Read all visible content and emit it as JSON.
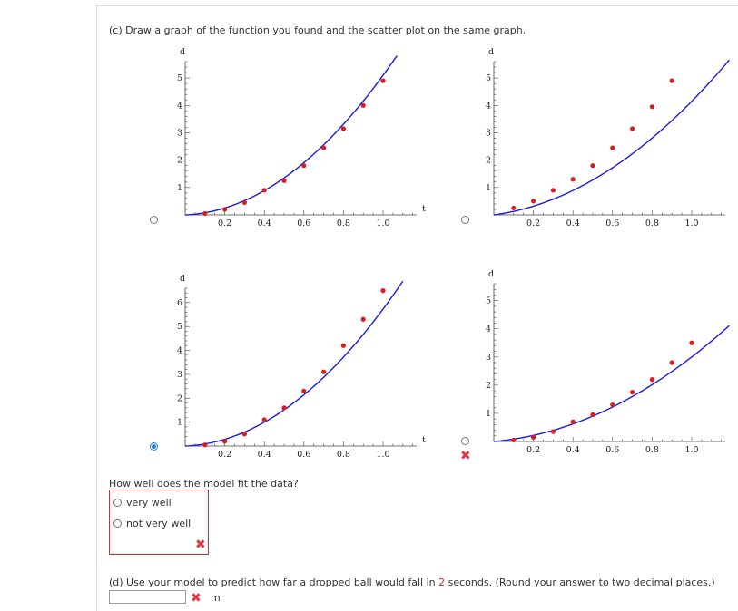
{
  "part_c": {
    "text": "(c) Draw a graph of the function you found and the scatter plot on the same graph."
  },
  "graphs": [
    {
      "id": "tl",
      "selected": false,
      "y_label": "d",
      "x_label": "t",
      "y_ticks": [
        "1",
        "2",
        "3",
        "4",
        "5"
      ],
      "x_ticks": [
        "0.2",
        "0.4",
        "0.6",
        "0.8",
        "1.0"
      ],
      "ymax": 5.6,
      "xmax": 1.17,
      "curve": {
        "a": 4.8,
        "b": 0.3
      },
      "points": [
        [
          0.1,
          0.05
        ],
        [
          0.2,
          0.2
        ],
        [
          0.3,
          0.45
        ],
        [
          0.4,
          0.9
        ],
        [
          0.5,
          1.25
        ],
        [
          0.6,
          1.8
        ],
        [
          0.7,
          2.45
        ],
        [
          0.8,
          3.15
        ],
        [
          0.9,
          4.0
        ],
        [
          1.0,
          4.9
        ]
      ]
    },
    {
      "id": "tr",
      "selected": false,
      "y_label": "d",
      "x_label": "",
      "y_ticks": [
        "1",
        "2",
        "3",
        "4",
        "5"
      ],
      "x_ticks": [
        "0.2",
        "0.4",
        "0.6",
        "0.8",
        "1.0"
      ],
      "ymax": 5.6,
      "xmax": 1.17,
      "curve": {
        "a": 3.2,
        "b": 0.95
      },
      "points": [
        [
          0.1,
          0.25
        ],
        [
          0.2,
          0.5
        ],
        [
          0.3,
          0.9
        ],
        [
          0.4,
          1.3
        ],
        [
          0.5,
          1.8
        ],
        [
          0.6,
          2.45
        ],
        [
          0.7,
          3.15
        ],
        [
          0.8,
          3.95
        ],
        [
          0.9,
          4.9
        ]
      ]
    },
    {
      "id": "bl",
      "selected": true,
      "y_label": "d",
      "x_label": "t",
      "y_ticks": [
        "1",
        "2",
        "3",
        "4",
        "5",
        "6"
      ],
      "x_ticks": [
        "0.2",
        "0.4",
        "0.6",
        "0.8",
        "1.0"
      ],
      "ymax": 6.6,
      "xmax": 1.17,
      "curve": {
        "a": 5.4,
        "b": 0.33
      },
      "points": [
        [
          0.1,
          0.05
        ],
        [
          0.2,
          0.2
        ],
        [
          0.3,
          0.5
        ],
        [
          0.4,
          1.1
        ],
        [
          0.5,
          1.6
        ],
        [
          0.6,
          2.3
        ],
        [
          0.7,
          3.1
        ],
        [
          0.8,
          4.2
        ],
        [
          0.9,
          5.3
        ],
        [
          1.0,
          6.5
        ]
      ]
    },
    {
      "id": "br",
      "selected": false,
      "y_label": "d",
      "x_label": "",
      "y_ticks": [
        "1",
        "2",
        "3",
        "4",
        "5"
      ],
      "x_ticks": [
        "0.2",
        "0.4",
        "0.6",
        "0.8",
        "1.0"
      ],
      "ymax": 5.6,
      "xmax": 1.17,
      "curve": {
        "a": 2.4,
        "b": 0.6
      },
      "points": [
        [
          0.1,
          0.05
        ],
        [
          0.2,
          0.15
        ],
        [
          0.3,
          0.35
        ],
        [
          0.4,
          0.7
        ],
        [
          0.5,
          0.95
        ],
        [
          0.6,
          1.3
        ],
        [
          0.7,
          1.75
        ],
        [
          0.8,
          2.2
        ],
        [
          0.9,
          2.8
        ],
        [
          1.0,
          3.5
        ]
      ]
    }
  ],
  "fit_question": {
    "text": "How well does the model fit the data?",
    "options": [
      "very well",
      "not very well"
    ]
  },
  "part_d": {
    "prefix": "(d) Use your model to predict how far a dropped ball would fall in ",
    "highlight": "2",
    "suffix": " seconds. (Round your answer to two decimal places.)",
    "unit": "m",
    "value": ""
  },
  "colors": {
    "curve": "#1a1ae0",
    "point": "#e01a1a",
    "error": "#e0383e",
    "select": "#2a7de1"
  }
}
